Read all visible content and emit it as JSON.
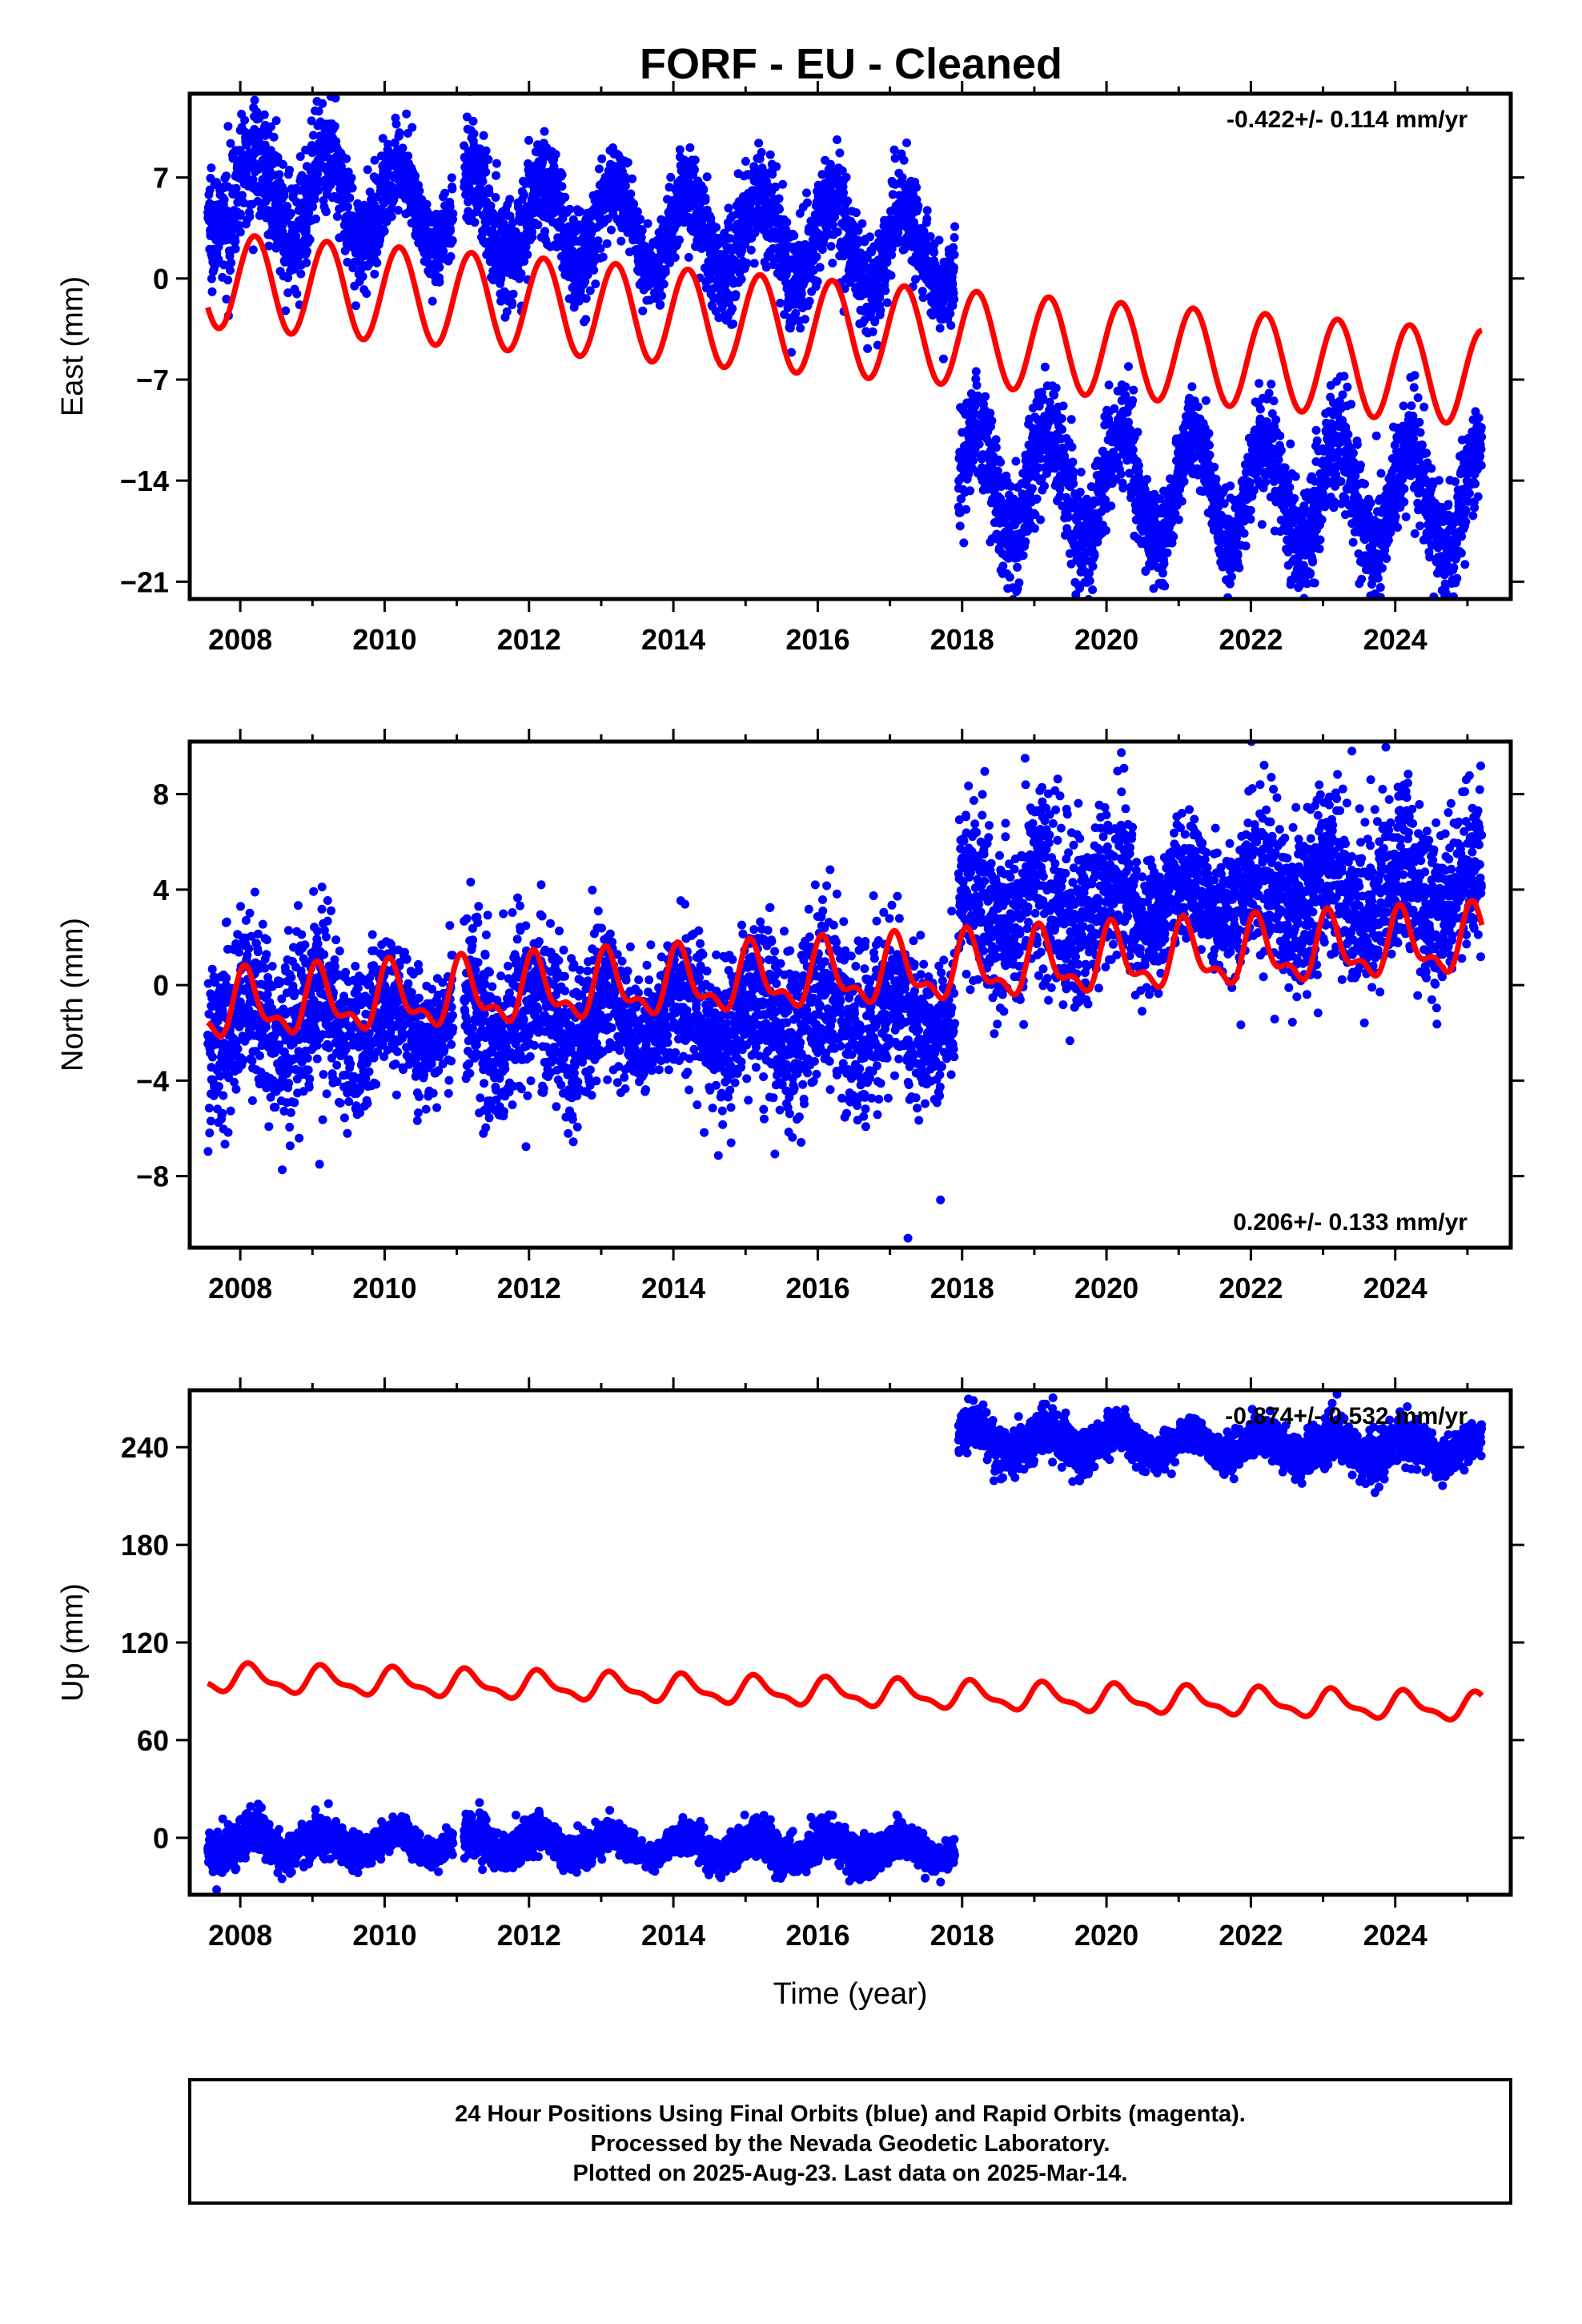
{
  "title": "FORF  - EU - Cleaned",
  "footer": {
    "lines": [
      "24 Hour Positions Using Final Orbits (blue) and Rapid Orbits (magenta).",
      "Processed by the Nevada Geodetic Laboratory.",
      "Plotted on 2025-Aug-23. Last data on 2025-Mar-14."
    ]
  },
  "chart_data": [
    {
      "type": "scatter",
      "ylabel": "East (mm)",
      "xlabel": "",
      "rate": "-0.422+/- 0.114 mm/yr",
      "rate_position": "top-right",
      "xlim": [
        2007.3,
        2025.6
      ],
      "ylim": [
        -22.2,
        12.8
      ],
      "x_ticks": [
        "2008",
        "2010",
        "2012",
        "2014",
        "2016",
        "2018",
        "2020",
        "2022",
        "2024"
      ],
      "y_ticks": [
        "7",
        "0",
        "−7",
        "−14",
        "−21"
      ],
      "y_tick_values": [
        7,
        0,
        -7,
        -14,
        -21
      ],
      "grid": false,
      "colors": {
        "data": "#0000ff",
        "model": "#ff0000"
      },
      "data_segments": [
        {
          "x_start": 2007.55,
          "x_end": 2010.95,
          "level_start": 6.2,
          "level_end": 4.8,
          "amplitude": 2.8,
          "phase": 0.3,
          "noise": 1.6
        },
        {
          "x_start": 2011.1,
          "x_end": 2017.9,
          "level_start": 4.4,
          "level_end": 1.8,
          "amplitude": 2.8,
          "phase": 0.3,
          "noise": 1.6
        },
        {
          "x_start": 2017.95,
          "x_end": 2025.2,
          "level_start": -14.2,
          "level_end": -15.2,
          "amplitude": 3.8,
          "phase": 0.3,
          "noise": 1.7
        }
      ],
      "model": {
        "x_start": 2007.55,
        "x_end": 2025.2,
        "level_start": -0.1,
        "level_end": -6.9,
        "amplitude": 3.3,
        "phase": 0.3,
        "semiannual": 0.0
      }
    },
    {
      "type": "scatter",
      "ylabel": "North (mm)",
      "xlabel": "",
      "rate": "0.206+/- 0.133 mm/yr",
      "rate_position": "bottom-right",
      "xlim": [
        2007.3,
        2025.6
      ],
      "ylim": [
        -11.0,
        10.2
      ],
      "x_ticks": [
        "2008",
        "2010",
        "2012",
        "2014",
        "2016",
        "2018",
        "2020",
        "2022",
        "2024"
      ],
      "y_ticks": [
        "8",
        "4",
        "0",
        "−4",
        "−8"
      ],
      "y_tick_values": [
        8,
        4,
        0,
        -4,
        -8
      ],
      "grid": false,
      "colors": {
        "data": "#0000ff",
        "model": "#ff0000"
      },
      "data_segments": [
        {
          "x_start": 2007.55,
          "x_end": 2010.95,
          "level_start": -1.3,
          "level_end": -1.6,
          "amplitude": 1.0,
          "phase": 1.0,
          "noise": 1.5
        },
        {
          "x_start": 2011.1,
          "x_end": 2017.9,
          "level_start": -1.4,
          "level_end": -1.2,
          "amplitude": 1.0,
          "phase": 1.0,
          "noise": 1.5
        },
        {
          "x_start": 2017.95,
          "x_end": 2025.2,
          "level_start": 3.2,
          "level_end": 4.2,
          "amplitude": 1.0,
          "phase": 1.0,
          "noise": 1.5
        }
      ],
      "model": {
        "x_start": 2007.55,
        "x_end": 2025.2,
        "level_start": -1.0,
        "level_end": 1.8,
        "amplitude": 1.2,
        "phase": 1.0,
        "semiannual": 0.6
      },
      "outliers": [
        {
          "x": 2017.7,
          "y": -9.0
        },
        {
          "x": 2017.25,
          "y": -10.6
        },
        {
          "x": 2023.4,
          "y": 9.8
        }
      ]
    },
    {
      "type": "scatter",
      "ylabel": "Up (mm)",
      "xlabel": "Time (year)",
      "rate": "-0.874+/- 0.532 mm/yr",
      "rate_position": "top-right",
      "xlim": [
        2007.3,
        2025.6
      ],
      "ylim": [
        -35.0,
        275.0
      ],
      "x_ticks": [
        "2008",
        "2010",
        "2012",
        "2014",
        "2016",
        "2018",
        "2020",
        "2022",
        "2024"
      ],
      "y_ticks": [
        "240",
        "180",
        "120",
        "60",
        "0"
      ],
      "y_tick_values": [
        240,
        180,
        120,
        60,
        0
      ],
      "grid": false,
      "colors": {
        "data": "#0000ff",
        "model": "#ff0000"
      },
      "data_segments": [
        {
          "x_start": 2007.55,
          "x_end": 2010.95,
          "level_start": -4.0,
          "level_end": -3.0,
          "amplitude": 6.5,
          "phase": 0.6,
          "noise": 5.0
        },
        {
          "x_start": 2011.1,
          "x_end": 2017.9,
          "level_start": -3.0,
          "level_end": -8.0,
          "amplitude": 6.5,
          "phase": 0.6,
          "noise": 5.0
        },
        {
          "x_start": 2017.95,
          "x_end": 2025.2,
          "level_start": 245.0,
          "level_end": 238.0,
          "amplitude": 7.5,
          "phase": 0.6,
          "noise": 5.5
        }
      ],
      "model": {
        "x_start": 2007.55,
        "x_end": 2025.2,
        "level_start": 98.0,
        "level_end": 80.0,
        "amplitude": 7.5,
        "phase": 0.6,
        "semiannual": 3.0
      }
    }
  ]
}
